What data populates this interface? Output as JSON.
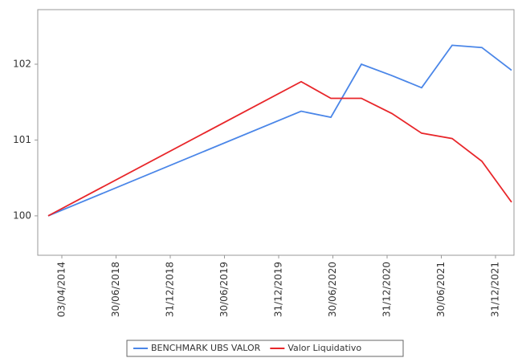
{
  "chart_data": {
    "type": "line",
    "categories": [
      "03/04/2014",
      "30/06/2018",
      "31/12/2018",
      "30/06/2019",
      "31/12/2019",
      "30/06/2020",
      "31/12/2020",
      "30/06/2021",
      "31/12/2021"
    ],
    "series": [
      {
        "name": "BENCHMARK UBS VALOR",
        "color": "#4a86e8",
        "values": [
          100,
          101.38,
          101.3,
          102.0,
          101.85,
          101.69,
          102.25,
          102.22,
          101.92
        ]
      },
      {
        "name": "Valor Liquidativo",
        "color": "#e8262a",
        "values": [
          100,
          101.77,
          101.55,
          101.55,
          101.35,
          101.09,
          101.02,
          100.72,
          100.18
        ]
      }
    ],
    "ylim": [
      99.48,
      102.72
    ],
    "yticks": [
      100,
      101,
      102
    ],
    "legend": "bottom"
  }
}
